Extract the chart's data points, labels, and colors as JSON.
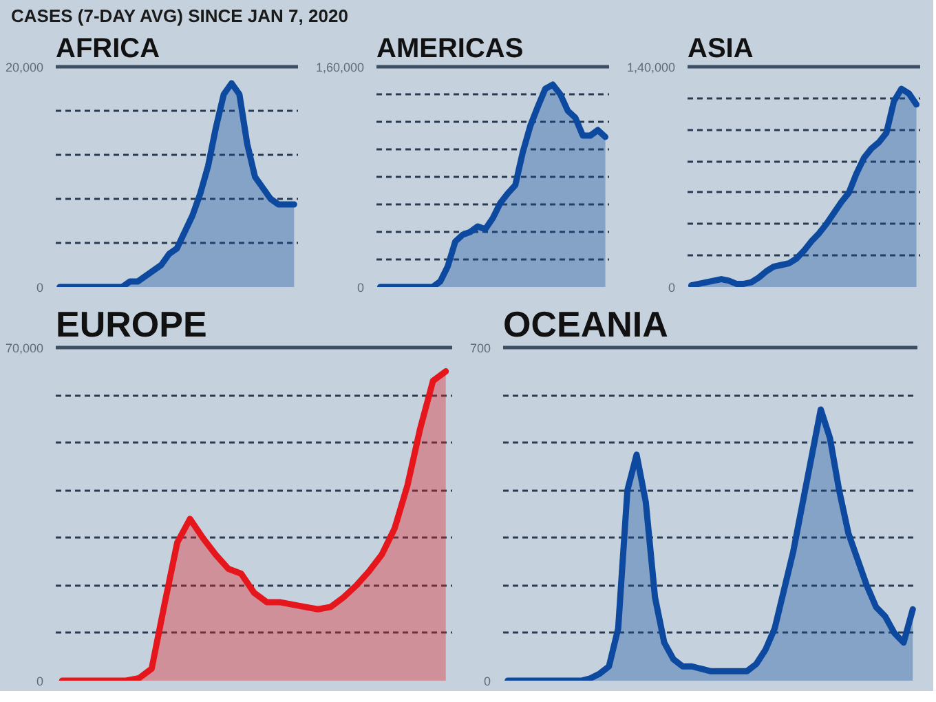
{
  "chart_data": [
    {
      "type": "area",
      "title": "AFRICA",
      "annotations": [
        "CASES (7-DAY AVG) SINCE JAN 7, 2020"
      ],
      "categories": [
        null,
        null,
        null,
        null,
        null,
        null,
        null,
        null,
        null,
        null,
        null,
        null,
        null,
        null,
        null,
        null,
        null,
        null,
        null,
        null,
        null,
        null,
        null,
        null,
        null,
        null,
        null,
        null,
        null,
        null,
        null
      ],
      "values": [
        0,
        0,
        0,
        0,
        0,
        0,
        0,
        0,
        0,
        500,
        500,
        1000,
        1500,
        2000,
        3000,
        3500,
        5000,
        6500,
        8500,
        11000,
        14500,
        17500,
        18500,
        17500,
        13000,
        10000,
        9000,
        8000,
        7500,
        7500,
        7500
      ],
      "color": "#0d4a9f",
      "ylim": [
        0,
        20000
      ],
      "yticks": [
        0,
        {
          "value": 4000,
          "label": null
        },
        {
          "value": 8000,
          "label": null
        },
        {
          "value": 12000,
          "label": null
        },
        {
          "value": 16000,
          "label": null
        },
        {
          "value": 20000,
          "label": "20,000"
        }
      ],
      "grid": "y",
      "tick_labels": "y"
    },
    {
      "type": "area",
      "title": "AMERICAS",
      "categories": [
        null,
        null,
        null,
        null,
        null,
        null,
        null,
        null,
        null,
        null,
        null,
        null,
        null,
        null,
        null,
        null,
        null,
        null,
        null,
        null,
        null,
        null,
        null,
        null,
        null,
        null,
        null,
        null,
        null,
        null,
        null
      ],
      "values": [
        0,
        0,
        0,
        0,
        0,
        0,
        0,
        0,
        4000,
        15000,
        33000,
        38000,
        40000,
        44000,
        42000,
        50000,
        61000,
        68000,
        74000,
        98000,
        117000,
        131000,
        144000,
        147000,
        140000,
        128000,
        123000,
        110000,
        110000,
        114000,
        109000
      ],
      "color": "#0d4a9f",
      "ylim": [
        0,
        160000
      ],
      "yticks": [
        0,
        {
          "value": 20000,
          "label": null
        },
        {
          "value": 40000,
          "label": null
        },
        {
          "value": 60000,
          "label": null
        },
        {
          "value": 80000,
          "label": null
        },
        {
          "value": 100000,
          "label": null
        },
        {
          "value": 120000,
          "label": null
        },
        {
          "value": 140000,
          "label": null
        },
        {
          "value": 160000,
          "label": "1,60,000"
        }
      ],
      "grid": "y",
      "tick_labels": "y"
    },
    {
      "type": "area",
      "title": "ASIA",
      "categories": [
        null,
        null,
        null,
        null,
        null,
        null,
        null,
        null,
        null,
        null,
        null,
        null,
        null,
        null,
        null,
        null,
        null,
        null,
        null,
        null,
        null,
        null,
        null,
        null,
        null,
        null,
        null,
        null,
        null,
        null,
        null
      ],
      "values": [
        1000,
        2000,
        3000,
        4000,
        5000,
        4000,
        2000,
        2000,
        3000,
        6000,
        10000,
        13000,
        14000,
        15000,
        18000,
        23000,
        29000,
        34000,
        40000,
        47000,
        54000,
        60000,
        72000,
        82000,
        88000,
        92000,
        98000,
        118000,
        126000,
        123000,
        116000
      ],
      "color": "#0d4a9f",
      "ylim": [
        0,
        140000
      ],
      "yticks": [
        0,
        {
          "value": 20000,
          "label": null
        },
        {
          "value": 40000,
          "label": null
        },
        {
          "value": 60000,
          "label": null
        },
        {
          "value": 80000,
          "label": null
        },
        {
          "value": 100000,
          "label": null
        },
        {
          "value": 120000,
          "label": null
        },
        {
          "value": 140000,
          "label": "1,40,000"
        }
      ],
      "grid": "y",
      "tick_labels": "y"
    },
    {
      "type": "area",
      "title": "EUROPE",
      "categories": [
        null,
        null,
        null,
        null,
        null,
        null,
        null,
        null,
        null,
        null,
        null,
        null,
        null,
        null,
        null,
        null,
        null,
        null,
        null,
        null,
        null,
        null,
        null,
        null,
        null,
        null,
        null,
        null,
        null,
        null,
        null
      ],
      "values": [
        0,
        0,
        0,
        0,
        0,
        0,
        500,
        2500,
        16000,
        29000,
        34000,
        30000,
        26500,
        23500,
        22500,
        18500,
        16500,
        16500,
        16000,
        15500,
        15000,
        15500,
        17500,
        20000,
        23000,
        26500,
        32000,
        41000,
        53000,
        63000,
        65000
      ],
      "color": "#e5161c",
      "ylim": [
        0,
        70000
      ],
      "yticks": [
        0,
        {
          "value": 10000,
          "label": null
        },
        {
          "value": 20000,
          "label": null
        },
        {
          "value": 30000,
          "label": null
        },
        {
          "value": 40000,
          "label": null
        },
        {
          "value": 50000,
          "label": null
        },
        {
          "value": 60000,
          "label": null
        },
        {
          "value": 70000,
          "label": "70,000"
        }
      ],
      "grid": "y",
      "tick_labels": "y"
    },
    {
      "type": "area",
      "title": "OCEANIA",
      "categories": [
        null,
        null,
        null,
        null,
        null,
        null,
        null,
        null,
        null,
        null,
        null,
        null,
        null,
        null,
        null,
        null,
        null,
        null,
        null,
        null,
        null,
        null,
        null,
        null,
        null,
        null,
        null,
        null,
        null,
        null,
        null,
        null,
        null,
        null,
        null,
        null,
        null,
        null,
        null,
        null,
        null,
        null,
        null,
        null,
        null
      ],
      "values": [
        0,
        0,
        0,
        0,
        0,
        0,
        0,
        0,
        0,
        5,
        15,
        30,
        110,
        400,
        475,
        375,
        175,
        80,
        45,
        30,
        30,
        25,
        20,
        20,
        20,
        20,
        20,
        35,
        65,
        110,
        190,
        270,
        370,
        470,
        570,
        510,
        400,
        310,
        255,
        200,
        155,
        135,
        100,
        80,
        150
      ],
      "color": "#0d4a9f",
      "ylim": [
        0,
        700
      ],
      "yticks": [
        0,
        {
          "value": 100,
          "label": null
        },
        {
          "value": 200,
          "label": null
        },
        {
          "value": 300,
          "label": null
        },
        {
          "value": 400,
          "label": null
        },
        {
          "value": 500,
          "label": null
        },
        {
          "value": 600,
          "label": null
        },
        700
      ],
      "grid": "y",
      "tick_labels": "y"
    }
  ]
}
